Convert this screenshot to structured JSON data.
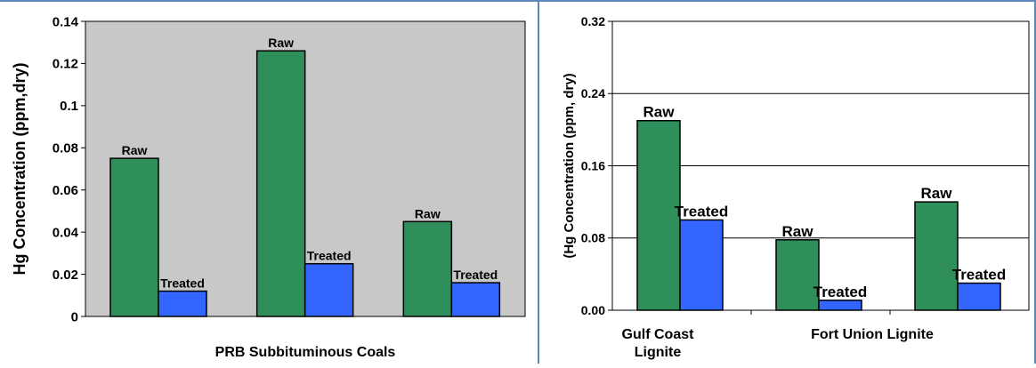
{
  "colors": {
    "raw": "#2f8f5b",
    "treated": "#3366ff",
    "frame": "#5b86b8",
    "plot_bg_left": "#c8c8c8",
    "plot_bg_right": "#ffffff"
  },
  "chart_data": [
    {
      "type": "bar",
      "title": "",
      "xlabel": "PRB Subbituminous Coals",
      "ylabel": "Hg Concentration (ppm,dry)",
      "ylim": [
        0,
        0.14
      ],
      "yticks": [
        "0",
        "0.02",
        "0.04",
        "0.06",
        "0.08",
        "0.1",
        "0.12",
        "0.14"
      ],
      "grid": false,
      "categories": [
        "",
        "",
        ""
      ],
      "series": [
        {
          "values": [
            0.075,
            0.126,
            0.045
          ],
          "label": "Raw"
        },
        {
          "values": [
            0.012,
            0.025,
            0.016
          ],
          "label": "Treated"
        }
      ]
    },
    {
      "type": "bar",
      "title": "",
      "xlabel": "",
      "ylabel": "(Hg Concentration (ppm, dry)",
      "ylim": [
        0,
        0.32
      ],
      "yticks": [
        "0.00",
        "0.08",
        "0.16",
        "0.24",
        "0.32"
      ],
      "grid": true,
      "categories": [
        "Gulf Coast Lignite",
        "Fort Union Lignite",
        ""
      ],
      "category_lines": [
        [
          "Gulf Coast",
          "Lignite"
        ],
        [
          "Fort Union Lignite"
        ],
        []
      ],
      "series": [
        {
          "values": [
            0.21,
            0.078,
            0.12
          ],
          "label": "Raw"
        },
        {
          "values": [
            0.1,
            0.011,
            0.03
          ],
          "label": "Treated"
        }
      ]
    }
  ]
}
